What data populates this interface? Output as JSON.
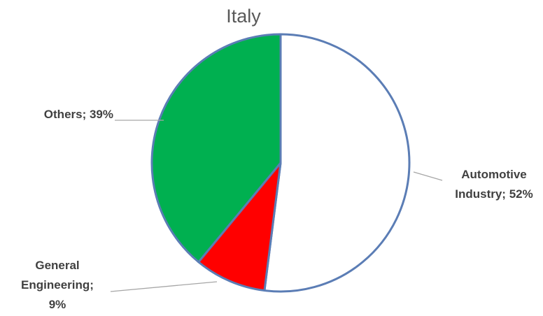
{
  "chart_data": {
    "type": "pie",
    "title": "Italy",
    "slices": [
      {
        "category": "Automotive Industry",
        "value": 52,
        "label_lines": [
          "Automotive",
          "Industry; 52%"
        ],
        "color": "#ffffff"
      },
      {
        "category": "General Engineering",
        "value": 9,
        "label_lines": [
          "General",
          "Engineering;",
          "9%"
        ],
        "color": "#ff0000"
      },
      {
        "category": "Others",
        "value": 39,
        "label_lines": [
          "Others; 39%"
        ],
        "color": "#00b050"
      }
    ],
    "border_color": "#5b7db5",
    "start_angle": "12 o'clock",
    "direction": "clockwise",
    "legend": "none",
    "data_labels": "outside with leader lines"
  }
}
